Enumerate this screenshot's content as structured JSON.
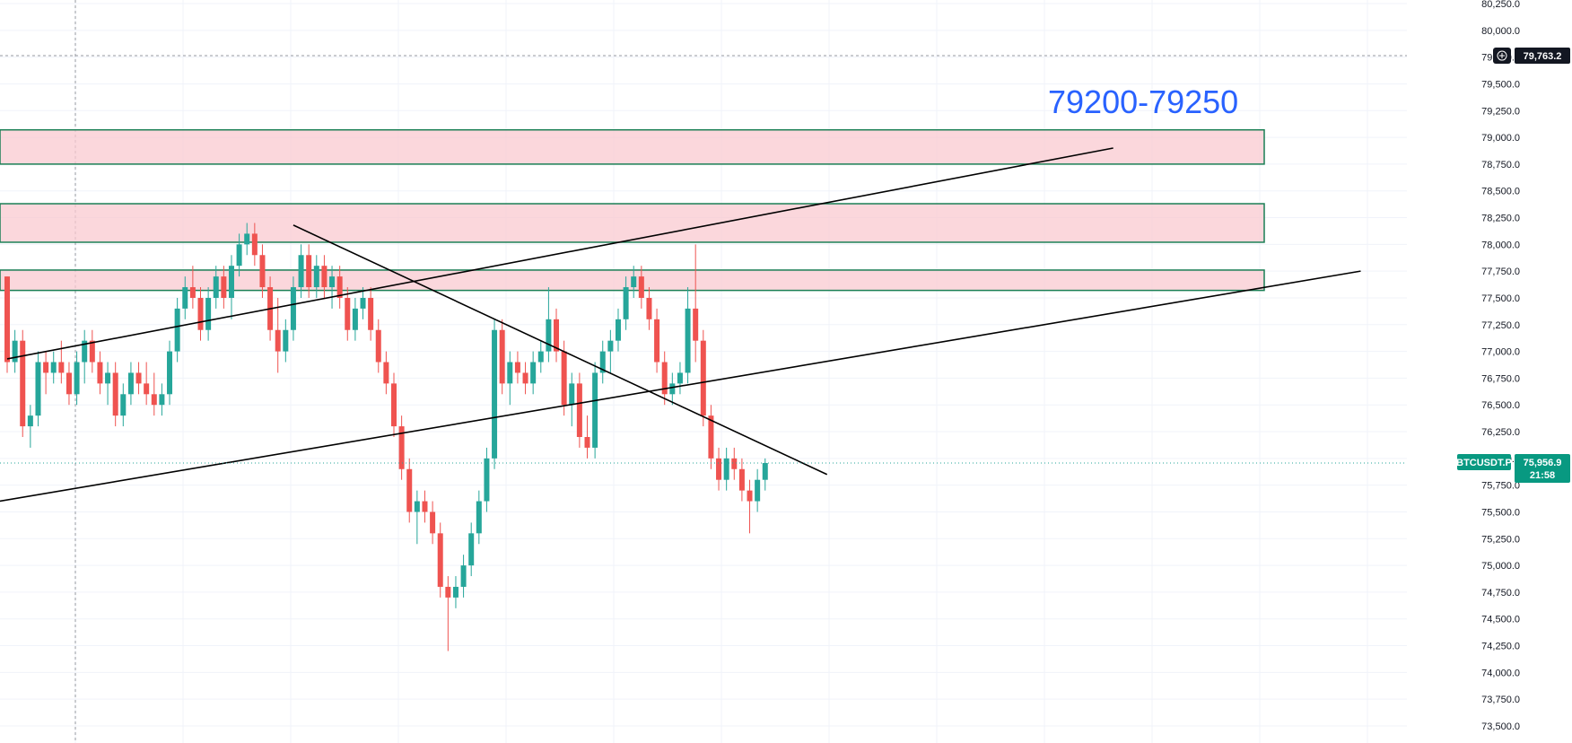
{
  "chart_data": {
    "type": "candlestick",
    "title": "",
    "symbol": "BTCUSDT.P",
    "last_price": "75,956.9",
    "countdown": "21:58",
    "crosshair_price": "79,763.2",
    "annotation": "79200-79250",
    "ylim": [
      73500,
      80250
    ],
    "y_ticks": [
      "80,250.0",
      "80,000.0",
      "79,750.0",
      "79,500.0",
      "79,250.0",
      "79,000.0",
      "78,750.0",
      "78,500.0",
      "78,250.0",
      "78,000.0",
      "77,750.0",
      "77,500.0",
      "77,250.0",
      "77,000.0",
      "76,750.0",
      "76,500.0",
      "76,250.0",
      "76,000.0",
      "75,750.0",
      "75,500.0",
      "75,250.0",
      "75,000.0",
      "74,750.0",
      "74,500.0",
      "74,250.0",
      "74,000.0",
      "73,750.0",
      "73,500.0"
    ],
    "y_tick_values": [
      80250,
      80000,
      79750,
      79500,
      79250,
      79000,
      78750,
      78500,
      78250,
      78000,
      77750,
      77500,
      77250,
      77000,
      76750,
      76500,
      76250,
      76000,
      75750,
      75500,
      75250,
      75000,
      74750,
      74500,
      74250,
      74000,
      73750,
      73500
    ],
    "candles": [
      [
        77700,
        77700,
        76800,
        76900
      ],
      [
        76900,
        77200,
        76800,
        77100
      ],
      [
        77100,
        77200,
        76200,
        76300
      ],
      [
        76300,
        76500,
        76100,
        76400
      ],
      [
        76400,
        77000,
        76300,
        76900
      ],
      [
        76900,
        77000,
        76600,
        76800
      ],
      [
        76800,
        77000,
        76700,
        76900
      ],
      [
        76900,
        77100,
        76700,
        76800
      ],
      [
        76800,
        76900,
        76500,
        76600
      ],
      [
        76600,
        77000,
        76500,
        76900
      ],
      [
        76900,
        77200,
        76700,
        77100
      ],
      [
        77100,
        77200,
        76800,
        76900
      ],
      [
        76900,
        77000,
        76600,
        76700
      ],
      [
        76700,
        76900,
        76500,
        76800
      ],
      [
        76800,
        76900,
        76300,
        76400
      ],
      [
        76400,
        76700,
        76300,
        76600
      ],
      [
        76600,
        76900,
        76500,
        76800
      ],
      [
        76800,
        76900,
        76600,
        76700
      ],
      [
        76700,
        76900,
        76500,
        76600
      ],
      [
        76600,
        76800,
        76400,
        76500
      ],
      [
        76500,
        76700,
        76400,
        76600
      ],
      [
        76600,
        77100,
        76500,
        77000
      ],
      [
        77000,
        77500,
        76900,
        77400
      ],
      [
        77400,
        77700,
        77300,
        77600
      ],
      [
        77600,
        77800,
        77400,
        77500
      ],
      [
        77500,
        77600,
        77100,
        77200
      ],
      [
        77200,
        77600,
        77100,
        77500
      ],
      [
        77500,
        77800,
        77400,
        77700
      ],
      [
        77700,
        77800,
        77400,
        77500
      ],
      [
        77500,
        77900,
        77300,
        77800
      ],
      [
        77800,
        78100,
        77700,
        78000
      ],
      [
        78000,
        78200,
        77900,
        78100
      ],
      [
        78100,
        78200,
        77800,
        77900
      ],
      [
        77900,
        78000,
        77500,
        77600
      ],
      [
        77600,
        77700,
        77100,
        77200
      ],
      [
        77200,
        77500,
        76800,
        77000
      ],
      [
        77000,
        77300,
        76900,
        77200
      ],
      [
        77200,
        77700,
        77100,
        77600
      ],
      [
        77600,
        78000,
        77500,
        77900
      ],
      [
        77900,
        78000,
        77500,
        77600
      ],
      [
        77600,
        77900,
        77500,
        77800
      ],
      [
        77800,
        77900,
        77500,
        77600
      ],
      [
        77600,
        77800,
        77400,
        77700
      ],
      [
        77700,
        77800,
        77400,
        77500
      ],
      [
        77500,
        77600,
        77100,
        77200
      ],
      [
        77200,
        77500,
        77100,
        77400
      ],
      [
        77400,
        77600,
        77300,
        77500
      ],
      [
        77500,
        77600,
        77100,
        77200
      ],
      [
        77200,
        77300,
        76800,
        76900
      ],
      [
        76900,
        77000,
        76600,
        76700
      ],
      [
        76700,
        76800,
        76200,
        76300
      ],
      [
        76300,
        76400,
        75800,
        75900
      ],
      [
        75900,
        76000,
        75400,
        75500
      ],
      [
        75500,
        75700,
        75200,
        75600
      ],
      [
        75600,
        75700,
        75400,
        75500
      ],
      [
        75500,
        75600,
        75200,
        75300
      ],
      [
        75300,
        75400,
        74700,
        74800
      ],
      [
        74800,
        74900,
        74200,
        74700
      ],
      [
        74700,
        74900,
        74600,
        74800
      ],
      [
        74800,
        75100,
        74700,
        75000
      ],
      [
        75000,
        75400,
        74900,
        75300
      ],
      [
        75300,
        75700,
        75200,
        75600
      ],
      [
        75600,
        76100,
        75500,
        76000
      ],
      [
        76000,
        77300,
        75900,
        77200
      ],
      [
        77200,
        77300,
        76600,
        76700
      ],
      [
        76700,
        77000,
        76500,
        76900
      ],
      [
        76900,
        77000,
        76700,
        76800
      ],
      [
        76800,
        76900,
        76600,
        76700
      ],
      [
        76700,
        77000,
        76600,
        76900
      ],
      [
        76900,
        77100,
        76800,
        77000
      ],
      [
        77000,
        77600,
        76900,
        77300
      ],
      [
        77300,
        77400,
        76900,
        77000
      ],
      [
        77000,
        77100,
        76400,
        76500
      ],
      [
        76500,
        76800,
        76300,
        76700
      ],
      [
        76700,
        76800,
        76100,
        76200
      ],
      [
        76200,
        76400,
        76000,
        76100
      ],
      [
        76100,
        76900,
        76000,
        76800
      ],
      [
        76800,
        77100,
        76700,
        77000
      ],
      [
        77000,
        77200,
        76800,
        77100
      ],
      [
        77100,
        77400,
        77000,
        77300
      ],
      [
        77300,
        77700,
        77200,
        77600
      ],
      [
        77600,
        77800,
        77500,
        77700
      ],
      [
        77700,
        77800,
        77400,
        77500
      ],
      [
        77500,
        77600,
        77200,
        77300
      ],
      [
        77300,
        77400,
        76800,
        76900
      ],
      [
        76900,
        77000,
        76500,
        76600
      ],
      [
        76600,
        76800,
        76500,
        76700
      ],
      [
        76700,
        76900,
        76600,
        76800
      ],
      [
        76800,
        77600,
        76700,
        77400
      ],
      [
        77400,
        78000,
        76900,
        77100
      ],
      [
        77100,
        77200,
        76300,
        76400
      ],
      [
        76400,
        76500,
        75900,
        76000
      ],
      [
        76000,
        76100,
        75700,
        75800
      ],
      [
        75800,
        76100,
        75700,
        76000
      ],
      [
        76000,
        76100,
        75800,
        75900
      ],
      [
        75900,
        76000,
        75600,
        75700
      ],
      [
        75700,
        75800,
        75300,
        75600
      ],
      [
        75600,
        75900,
        75500,
        75800
      ],
      [
        75800,
        76000,
        75700,
        75957
      ]
    ],
    "colors": {
      "up": "#26a69a",
      "down": "#ef5350",
      "grid": "#f0f3fa",
      "zone_fill": "#f9c9d0",
      "zone_stroke": "#1a7f55",
      "trend": "#000000",
      "accent": "#2962ff",
      "tag": "#089981",
      "crosshair_tag": "#131722"
    },
    "zones": [
      {
        "from": 78750,
        "to": 79070
      },
      {
        "from": 78020,
        "to": 78380
      },
      {
        "from": 77570,
        "to": 77760
      }
    ],
    "trendlines": [
      {
        "from": {
          "bar": 0,
          "price": 76930
        },
        "to": {
          "bar": 143,
          "price": 78900
        }
      },
      {
        "from": {
          "bar": -1,
          "price": 75600
        },
        "to": {
          "bar": 175,
          "price": 77750
        }
      },
      {
        "from": {
          "bar": 37,
          "price": 78180
        },
        "to": {
          "bar": 106,
          "price": 75850
        }
      }
    ]
  }
}
